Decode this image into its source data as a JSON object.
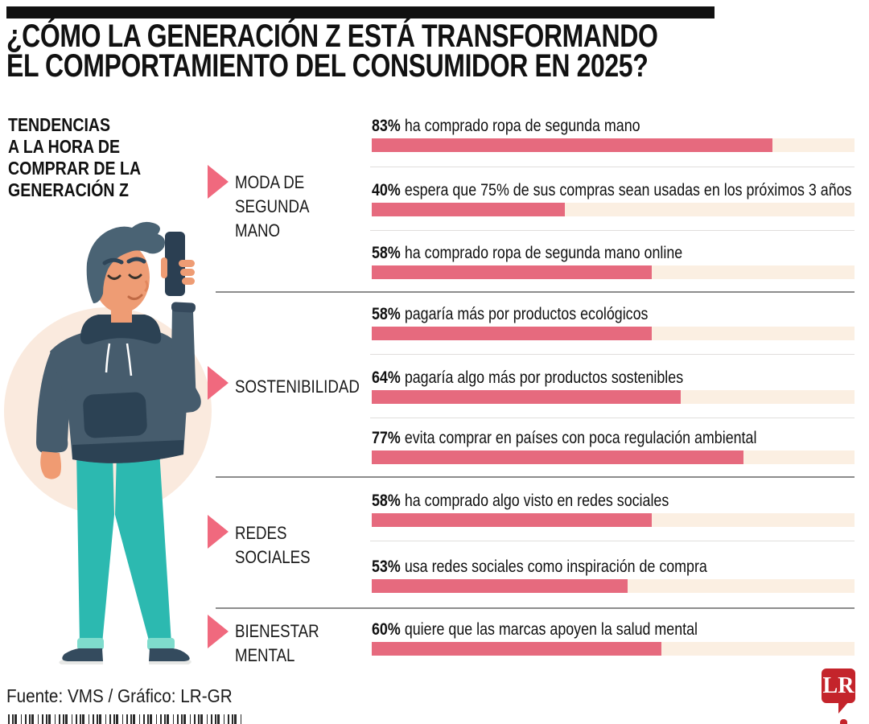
{
  "header": {
    "title": "¿CÓMO LA GENERACIÓN Z ESTÁ TRANSFORMANDO\nEL COMPORTAMIENTO DEL CONSUMIDOR EN 2025?"
  },
  "sidebar": {
    "heading": "TENDENCIAS\nA LA HORA DE\nCOMPRAR DE LA\nGENERACIÓN Z",
    "illustration": "young-man-in-hoodie-looking-at-smartphone"
  },
  "colors": {
    "bar_fill": "#E66A7E",
    "bar_track": "#FBEFE2",
    "arrow": "#F0697E",
    "logo_red": "#C4242B",
    "circle_bg": "#FAEADE",
    "text": "#111111"
  },
  "chart_data": {
    "type": "bar",
    "title": "¿Cómo la Generación Z está transformando el comportamiento del consumidor en 2025?",
    "subtitle": "Tendencias a la hora de comprar de la Generación Z",
    "unit": "%",
    "xlim": [
      0,
      100
    ],
    "orientation": "horizontal",
    "groups": [
      {
        "category": "MODA DE\nSEGUNDA\nMANO",
        "items": [
          {
            "value": 83,
            "pct": "83%",
            "label": "ha comprado ropa de segunda mano"
          },
          {
            "value": 40,
            "pct": "40%",
            "label": "espera que 75% de sus compras sean usadas en los próximos 3 años"
          },
          {
            "value": 58,
            "pct": "58%",
            "label": "ha comprado ropa de segunda mano online"
          }
        ]
      },
      {
        "category": "SOSTENIBILIDAD",
        "items": [
          {
            "value": 58,
            "pct": "58%",
            "label": "pagaría más por productos ecológicos"
          },
          {
            "value": 64,
            "pct": "64%",
            "label": "pagaría algo más por productos sostenibles"
          },
          {
            "value": 77,
            "pct": "77%",
            "label": "evita comprar en países con poca regulación ambiental"
          }
        ]
      },
      {
        "category": "REDES\nSOCIALES",
        "items": [
          {
            "value": 58,
            "pct": "58%",
            "label": "ha comprado algo visto en redes sociales"
          },
          {
            "value": 53,
            "pct": "53%",
            "label": "usa redes sociales como inspiración de compra"
          }
        ]
      },
      {
        "category": "BIENESTAR\nMENTAL",
        "items": [
          {
            "value": 60,
            "pct": "60%",
            "label": "quiere que las marcas apoyen la salud mental"
          }
        ]
      }
    ]
  },
  "footer": {
    "source": "Fuente: VMS / Gráfico: LR-GR",
    "logo": "LR"
  }
}
